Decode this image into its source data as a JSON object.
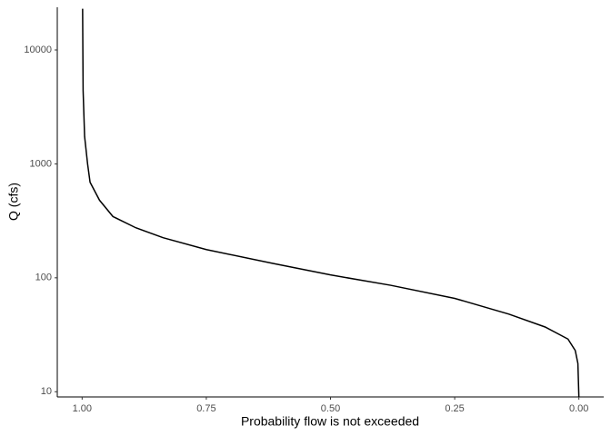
{
  "chart_data": {
    "type": "line",
    "x_label": "Probability flow is not exceeded",
    "y_label": "Q (cfs)",
    "x": [
      0.999,
      0.998,
      0.995,
      0.989,
      0.984,
      0.965,
      0.938,
      0.892,
      0.837,
      0.75,
      0.617,
      0.5,
      0.379,
      0.25,
      0.141,
      0.068,
      0.022,
      0.0073,
      0.002,
      0.0
    ],
    "values": [
      23000,
      4400,
      1740,
      1000,
      690,
      480,
      345,
      275,
      225,
      177,
      134,
      106,
      86,
      66,
      48,
      37,
      29,
      23,
      17.7,
      9
    ],
    "color": "#000000",
    "xlim": [
      1.05,
      -0.05
    ],
    "ylim": [
      9,
      23700
    ],
    "y_log": true,
    "xticks": [
      {
        "value": 1,
        "label": "1.00"
      },
      0.75,
      {
        "value": 0.5,
        "label": "0.50"
      },
      0.25,
      {
        "value": 0,
        "label": "0.00"
      }
    ],
    "yticks": [
      10,
      100,
      1000,
      10000
    ],
    "grid": false
  }
}
